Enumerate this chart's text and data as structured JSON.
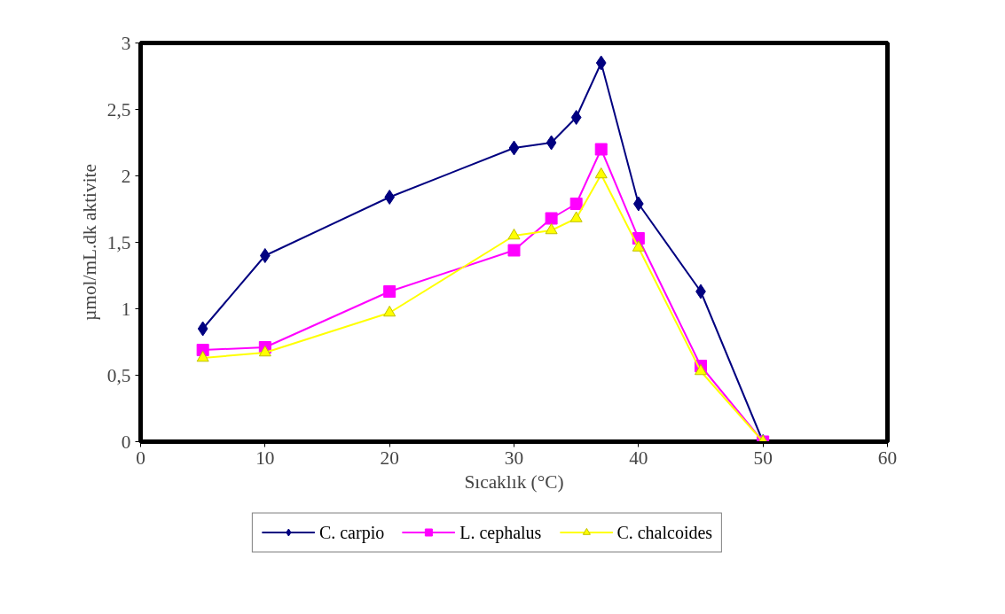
{
  "chart_data": {
    "type": "line",
    "xlabel": "Sıcaklık (°C)",
    "ylabel": "µmol/mL.dk aktivite",
    "x": [
      5,
      10,
      20,
      30,
      33,
      35,
      37,
      40,
      45,
      50
    ],
    "series": [
      {
        "name": "C. carpio",
        "color": "#000080",
        "marker": "diamond",
        "values": [
          0.85,
          1.4,
          1.84,
          2.21,
          2.25,
          2.44,
          2.85,
          1.79,
          1.13,
          0
        ]
      },
      {
        "name": "L. cephalus",
        "color": "#ff00ff",
        "marker": "square",
        "values": [
          0.69,
          0.71,
          1.13,
          1.44,
          1.68,
          1.79,
          2.2,
          1.53,
          0.57,
          0
        ]
      },
      {
        "name": "C. chalcoides",
        "color": "#ffff00",
        "marker": "triangle",
        "values": [
          0.63,
          0.67,
          0.97,
          1.55,
          1.59,
          1.68,
          2.01,
          1.46,
          0.53,
          0
        ]
      }
    ],
    "xlim": [
      0,
      60
    ],
    "xticks": [
      0,
      10,
      20,
      30,
      40,
      50,
      60
    ],
    "ylim": [
      0,
      3
    ],
    "yticks": [
      0,
      {
        "value": 0.5,
        "label": "0,5"
      },
      1,
      {
        "value": 1.5,
        "label": "1,5"
      },
      2,
      {
        "value": 2.5,
        "label": "2,5"
      },
      3
    ],
    "grid": false,
    "legend": "bottom",
    "line_style": "solid"
  }
}
